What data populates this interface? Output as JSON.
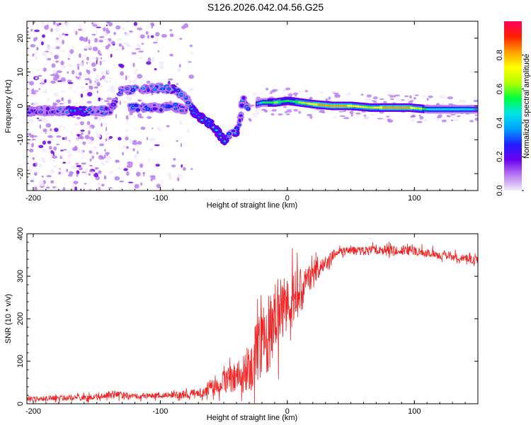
{
  "figure": {
    "title": "S126.2026.042.04.56.G25"
  },
  "chart_data": [
    {
      "type": "heatmap",
      "xlabel": "Height of straight line (km)",
      "ylabel": "Frequency (Hz)",
      "xlim": [
        -205,
        150
      ],
      "ylim": [
        -25,
        25
      ],
      "xticks": [
        -200,
        -100,
        0,
        100
      ],
      "yticks": [
        -20,
        -10,
        0,
        10,
        20
      ],
      "colorbar": {
        "label": "Normalized spectral amplitude",
        "range": [
          0,
          1
        ],
        "ticks": [
          "0.0",
          "0.2",
          "0.4",
          "0.6",
          "0.8"
        ],
        "colors": [
          "#f3eafc",
          "#b77cf0",
          "#6a00ee",
          "#1f1fff",
          "#00a0ff",
          "#00e5e5",
          "#00ff40",
          "#b4ff00",
          "#ffff00",
          "#ffa000",
          "#ff2000",
          "#ff0060"
        ]
      },
      "ridge": [
        {
          "x": -200,
          "f": -1.5,
          "a": 0.3
        },
        {
          "x": -185,
          "f": -1.5,
          "a": 0.3
        },
        {
          "x": -165,
          "f": -1.5,
          "a": 0.45
        },
        {
          "x": -150,
          "f": -1.5,
          "a": 0.35
        },
        {
          "x": -140,
          "f": -1.5,
          "a": 0.3
        },
        {
          "x": -130,
          "f": 4.5,
          "a": 0.3
        },
        {
          "x": -120,
          "f": 4.8,
          "a": 0.35
        },
        {
          "x": -110,
          "f": 5.0,
          "a": 0.3
        },
        {
          "x": -100,
          "f": 5.2,
          "a": 0.35
        },
        {
          "x": -90,
          "f": 5.0,
          "a": 0.4
        },
        {
          "x": -80,
          "f": 2.5,
          "a": 0.35
        },
        {
          "x": -75,
          "f": -1.0,
          "a": 0.4
        },
        {
          "x": -70,
          "f": -3.0,
          "a": 0.4
        },
        {
          "x": -60,
          "f": -5.5,
          "a": 0.45
        },
        {
          "x": -55,
          "f": -7.5,
          "a": 0.45
        },
        {
          "x": -50,
          "f": -10.5,
          "a": 0.45
        },
        {
          "x": -45,
          "f": -8.5,
          "a": 0.35
        },
        {
          "x": -40,
          "f": -7.5,
          "a": 0.4
        },
        {
          "x": -37,
          "f": -4.0,
          "a": 0.3
        },
        {
          "x": -35,
          "f": 2.0,
          "a": 0.3
        },
        {
          "x": -30,
          "f": -1.0,
          "a": 0.35
        },
        {
          "x": -25,
          "f": 0.5,
          "a": 0.3
        },
        {
          "x": -20,
          "f": 1.0,
          "a": 0.5
        },
        {
          "x": -10,
          "f": 1.0,
          "a": 0.6
        },
        {
          "x": 0,
          "f": 1.5,
          "a": 0.55
        },
        {
          "x": 10,
          "f": 1.0,
          "a": 0.6
        },
        {
          "x": 20,
          "f": 0.5,
          "a": 0.75
        },
        {
          "x": 35,
          "f": 0.0,
          "a": 0.85
        },
        {
          "x": 50,
          "f": 0.0,
          "a": 0.75
        },
        {
          "x": 65,
          "f": -0.5,
          "a": 0.65
        },
        {
          "x": 80,
          "f": -0.5,
          "a": 0.85
        },
        {
          "x": 95,
          "f": -0.5,
          "a": 0.8
        },
        {
          "x": 110,
          "f": -1.0,
          "a": 0.5
        },
        {
          "x": 130,
          "f": -1.0,
          "a": 0.45
        },
        {
          "x": 150,
          "f": -1.0,
          "a": 0.4
        }
      ],
      "secondary_ridge": [
        {
          "x": -120,
          "f": -0.5,
          "a": 0.35
        },
        {
          "x": -100,
          "f": -0.5,
          "a": 0.3
        },
        {
          "x": -90,
          "f": 0.0,
          "a": 0.35
        },
        {
          "x": -80,
          "f": -1.5,
          "a": 0.3
        }
      ]
    },
    {
      "type": "line",
      "xlabel": "Height of straight line (km)",
      "ylabel": "SNR (10 * v/v)",
      "xlim": [
        -205,
        150
      ],
      "ylim": [
        0,
        400
      ],
      "xticks": [
        -200,
        -100,
        0,
        100
      ],
      "yticks": [
        0,
        100,
        200,
        300,
        400
      ],
      "color": "#ee2222",
      "envelope": [
        {
          "x": -205,
          "mean": 12,
          "noise": 8
        },
        {
          "x": -150,
          "mean": 15,
          "noise": 10
        },
        {
          "x": -140,
          "mean": 22,
          "noise": 14
        },
        {
          "x": -120,
          "mean": 18,
          "noise": 10
        },
        {
          "x": -90,
          "mean": 20,
          "noise": 12
        },
        {
          "x": -70,
          "mean": 25,
          "noise": 16
        },
        {
          "x": -55,
          "mean": 45,
          "noise": 30
        },
        {
          "x": -35,
          "mean": 70,
          "noise": 60
        },
        {
          "x": -25,
          "mean": 110,
          "noise": 110
        },
        {
          "x": -15,
          "mean": 170,
          "noise": 140
        },
        {
          "x": -5,
          "mean": 220,
          "noise": 120
        },
        {
          "x": 5,
          "mean": 250,
          "noise": 90
        },
        {
          "x": 15,
          "mean": 280,
          "noise": 60
        },
        {
          "x": 25,
          "mean": 320,
          "noise": 30
        },
        {
          "x": 40,
          "mean": 358,
          "noise": 15
        },
        {
          "x": 80,
          "mean": 362,
          "noise": 15
        },
        {
          "x": 100,
          "mean": 360,
          "noise": 15
        },
        {
          "x": 120,
          "mean": 350,
          "noise": 15
        },
        {
          "x": 150,
          "mean": 338,
          "noise": 14
        }
      ]
    }
  ]
}
